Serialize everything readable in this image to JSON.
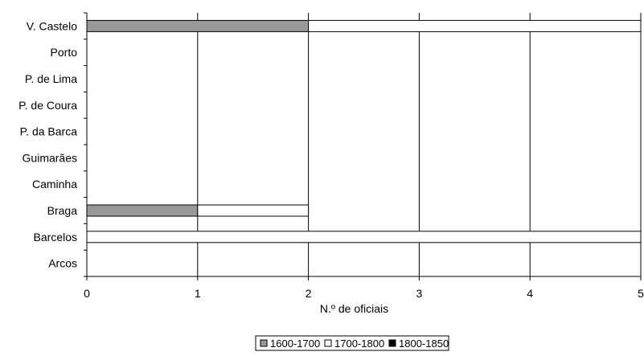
{
  "chart_data": {
    "type": "bar",
    "orientation": "horizontal",
    "stacked": true,
    "categories": [
      "V. Castelo",
      "Porto",
      "P. de Lima",
      "P. de Coura",
      "P. da Barca",
      "Guimarães",
      "Caminha",
      "Braga",
      "Barcelos",
      "Arcos"
    ],
    "series": [
      {
        "name": "1600-1700",
        "color": "#999999",
        "values": [
          2,
          0,
          0,
          0,
          0,
          0,
          0,
          1,
          0,
          0
        ]
      },
      {
        "name": "1700-1800",
        "color": "#ffffff",
        "values": [
          3,
          0,
          0,
          0,
          0,
          0,
          0,
          1,
          5,
          0
        ]
      },
      {
        "name": "1800-1850",
        "color": "#000000",
        "values": [
          0,
          0,
          0,
          0,
          0,
          0,
          0,
          0,
          0,
          0
        ]
      }
    ],
    "xlabel": "N.º de oficiais",
    "ylabel": "",
    "xlim": [
      0,
      5
    ],
    "xticks": [
      "0",
      "1",
      "2",
      "3",
      "4",
      "5"
    ],
    "grid": "vertical",
    "legend_position": "bottom"
  }
}
